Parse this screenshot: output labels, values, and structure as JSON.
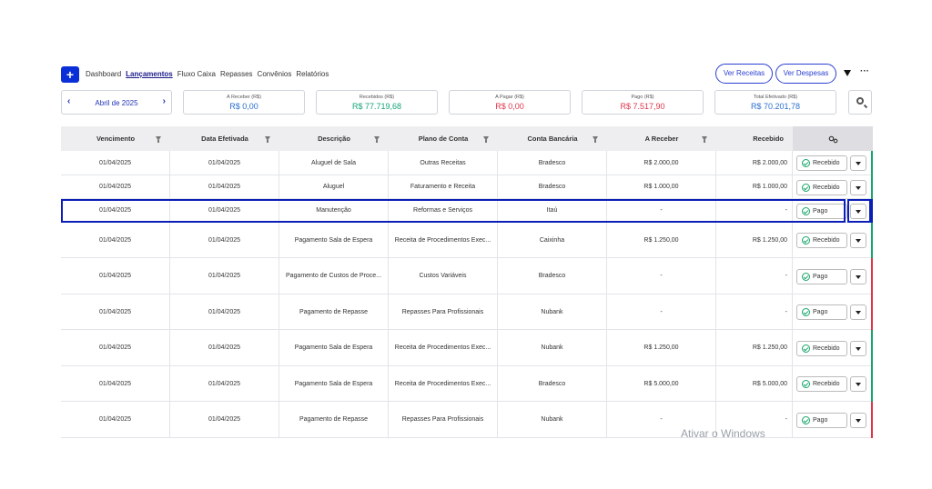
{
  "nav": {
    "add_label": "+",
    "items": [
      "Dashboard",
      "Lançamentos",
      "Fluxo Caixa",
      "Repasses",
      "Convênios",
      "Relatórios"
    ],
    "active_index": 1,
    "ver_receitas": "Ver Receitas",
    "ver_despesas": "Ver Despesas",
    "more": "···"
  },
  "period": {
    "month": "Abril de 2025",
    "prev": "‹",
    "next": "›"
  },
  "summary": [
    {
      "title": "A Receber (R$)",
      "value": "R$ 0,00",
      "color": "#2b6fd0"
    },
    {
      "title": "Recebidos (R$)",
      "value": "R$ 77.719,68",
      "color": "#14a37a"
    },
    {
      "title": "A Pagar (R$)",
      "value": "R$ 0,00",
      "color": "#e0344b"
    },
    {
      "title": "Pago (R$)",
      "value": "R$ 7.517,90",
      "color": "#e0344b"
    },
    {
      "title": "Total Efetivado (R$)",
      "value": "R$ 70.201,78",
      "color": "#2b6fd0"
    }
  ],
  "table": {
    "columns": [
      "Vencimento",
      "Data Efetivada",
      "Descrição",
      "Plano de Conta",
      "Conta Bancária",
      "A Receber",
      "Recebido"
    ],
    "rows": [
      {
        "vencimento": "01/04/2025",
        "data": "01/04/2025",
        "descricao": "Aluguel de Sala",
        "plano": "Outras Receitas",
        "conta": "Bradesco",
        "a_receber": "R$ 2.000,00",
        "recebido": "R$ 2.000,00",
        "status": "Recebido",
        "edge": "#18a56b"
      },
      {
        "vencimento": "01/04/2025",
        "data": "01/04/2025",
        "descricao": "Aluguel",
        "plano": "Faturamento e Receita",
        "conta": "Bradesco",
        "a_receber": "R$ 1.000,00",
        "recebido": "R$ 1.000,00",
        "status": "Recebido",
        "edge": "#18a56b"
      },
      {
        "vencimento": "01/04/2025",
        "data": "01/04/2025",
        "descricao": "Manutenção",
        "plano": "Reformas e Serviços",
        "conta": "Itaú",
        "a_receber": "-",
        "recebido": "-",
        "status": "Pago",
        "edge": "#0b1fb8"
      },
      {
        "vencimento": "01/04/2025",
        "data": "01/04/2025",
        "descricao": "Pagamento Sala de Espera",
        "plano": "Receita de Procedimentos Exec...",
        "conta": "Caixinha",
        "a_receber": "R$ 1.250,00",
        "recebido": "R$ 1.250,00",
        "status": "Recebido",
        "edge": "#18a56b"
      },
      {
        "vencimento": "01/04/2025",
        "data": "01/04/2025",
        "descricao": "Pagamento de Custos de Proce...",
        "plano": "Custos Variáveis",
        "conta": "Bradesco",
        "a_receber": "-",
        "recebido": "-",
        "status": "Pago",
        "edge": "#e0344b"
      },
      {
        "vencimento": "01/04/2025",
        "data": "01/04/2025",
        "descricao": "Pagamento de Repasse",
        "plano": "Repasses Para Profissionais",
        "conta": "Nubank",
        "a_receber": "-",
        "recebido": "-",
        "status": "Pago",
        "edge": "#e0344b"
      },
      {
        "vencimento": "01/04/2025",
        "data": "01/04/2025",
        "descricao": "Pagamento Sala de Espera",
        "plano": "Receita de Procedimentos Exec...",
        "conta": "Nubank",
        "a_receber": "R$ 1.250,00",
        "recebido": "R$ 1.250,00",
        "status": "Recebido",
        "edge": "#18a56b"
      },
      {
        "vencimento": "01/04/2025",
        "data": "01/04/2025",
        "descricao": "Pagamento Sala de Espera",
        "plano": "Receita de Procedimentos Exec...",
        "conta": "Bradesco",
        "a_receber": "R$ 5.000,00",
        "recebido": "R$ 5.000,00",
        "status": "Recebido",
        "edge": "#18a56b"
      },
      {
        "vencimento": "01/04/2025",
        "data": "01/04/2025",
        "descricao": "Pagamento de Repasse",
        "plano": "Repasses Para Profissionais",
        "conta": "Nubank",
        "a_receber": "-",
        "recebido": "-",
        "status": "Pago",
        "edge": "#e0344b"
      }
    ]
  },
  "watermark": "Ativar o Windows"
}
